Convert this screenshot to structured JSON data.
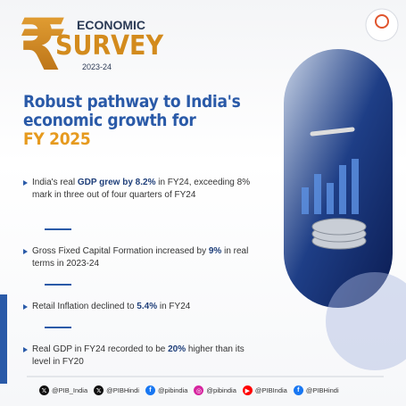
{
  "header": {
    "logo_word_1": "ECONOMIC",
    "logo_word_2": "SURVEY",
    "logo_year": "2023-24"
  },
  "title": {
    "lines": [
      "Robust pathway to India's",
      "economic growth for"
    ],
    "highlight": "FY 2025"
  },
  "bullets": [
    {
      "segments": [
        {
          "text": "India's real ",
          "bold": false
        },
        {
          "text": "GDP grew by 8.2%",
          "bold": true
        },
        {
          "text": " in FY24, exceeding 8% mark in three out of four quarters of FY24",
          "bold": false
        }
      ]
    },
    {
      "segments": [
        {
          "text": "Gross Fixed Capital Formation increased by ",
          "bold": false
        },
        {
          "text": "9%",
          "bold": true
        },
        {
          "text": " in real terms in 2023-24",
          "bold": false
        }
      ]
    },
    {
      "segments": [
        {
          "text": "Retail Inflation declined to ",
          "bold": false
        },
        {
          "text": "5.4%",
          "bold": true
        },
        {
          "text": " in FY24",
          "bold": false
        }
      ]
    },
    {
      "segments": [
        {
          "text": "Real GDP in FY24 recorded to be ",
          "bold": false
        },
        {
          "text": "20%",
          "bold": true
        },
        {
          "text": " higher than its level in FY20",
          "bold": false
        }
      ]
    }
  ],
  "footer": {
    "handles": [
      {
        "icon": "x",
        "color": "#111111",
        "text": "@PIB_India"
      },
      {
        "icon": "x",
        "color": "#111111",
        "text": "@PIBHindi"
      },
      {
        "icon": "f",
        "color": "#1877f2",
        "text": "@pibindia"
      },
      {
        "icon": "ig",
        "color": "#d6249f",
        "text": "@pibindia"
      },
      {
        "icon": "yt",
        "color": "#ff0000",
        "text": "@PIBIndia"
      },
      {
        "icon": "f",
        "color": "#1877f2",
        "text": "@PIBHindi"
      }
    ]
  }
}
